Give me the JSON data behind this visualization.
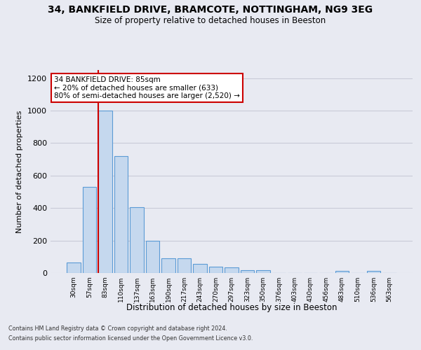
{
  "title1": "34, BANKFIELD DRIVE, BRAMCOTE, NOTTINGHAM, NG9 3EG",
  "title2": "Size of property relative to detached houses in Beeston",
  "xlabel": "Distribution of detached houses by size in Beeston",
  "ylabel": "Number of detached properties",
  "footnote1": "Contains HM Land Registry data © Crown copyright and database right 2024.",
  "footnote2": "Contains public sector information licensed under the Open Government Licence v3.0.",
  "categories": [
    "30sqm",
    "57sqm",
    "83sqm",
    "110sqm",
    "137sqm",
    "163sqm",
    "190sqm",
    "217sqm",
    "243sqm",
    "270sqm",
    "297sqm",
    "323sqm",
    "350sqm",
    "376sqm",
    "403sqm",
    "430sqm",
    "456sqm",
    "483sqm",
    "510sqm",
    "536sqm",
    "563sqm"
  ],
  "values": [
    65,
    530,
    1000,
    720,
    405,
    198,
    90,
    90,
    58,
    40,
    33,
    18,
    18,
    0,
    0,
    0,
    0,
    15,
    0,
    12,
    0
  ],
  "bar_color": "#c5d8ee",
  "bar_edge_color": "#5b9bd5",
  "grid_color": "#c8cad8",
  "annotation_box_text": "34 BANKFIELD DRIVE: 85sqm\n← 20% of detached houses are smaller (633)\n80% of semi-detached houses are larger (2,520) →",
  "annotation_box_color": "#ffffff",
  "annotation_box_edge_color": "#cc0000",
  "vline_color": "#cc0000",
  "background_color": "#e8eaf2",
  "plot_bg_color": "#e8eaf2",
  "ylim": [
    0,
    1250
  ],
  "yticks": [
    0,
    200,
    400,
    600,
    800,
    1000,
    1200
  ],
  "vline_bar_index": 2
}
